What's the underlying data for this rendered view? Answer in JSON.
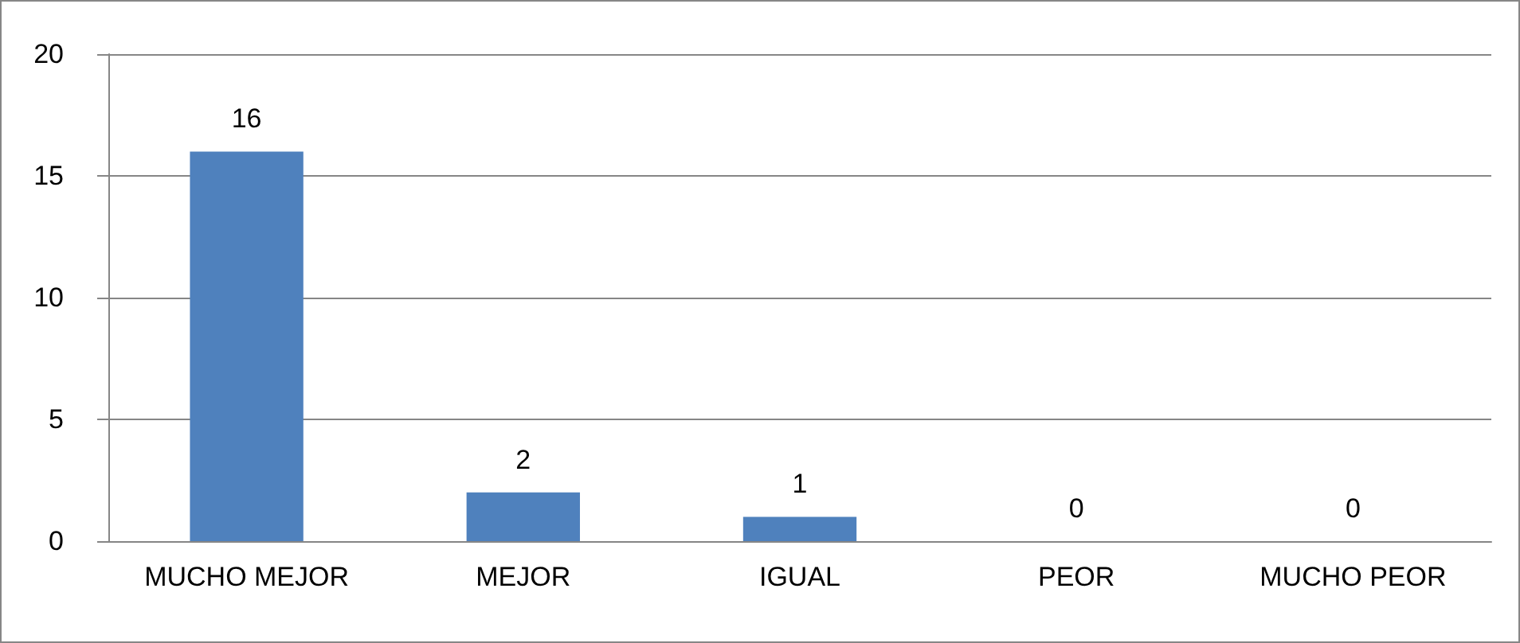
{
  "chart_data": {
    "type": "bar",
    "categories": [
      "MUCHO MEJOR",
      "MEJOR",
      "IGUAL",
      "PEOR",
      "MUCHO PEOR"
    ],
    "values": [
      16,
      2,
      1,
      0,
      0
    ],
    "color": "#4f81bd",
    "ylim": [
      0,
      20
    ],
    "yticks": [
      0,
      5,
      10,
      15,
      20
    ],
    "grid": "y",
    "data_labels": true
  }
}
